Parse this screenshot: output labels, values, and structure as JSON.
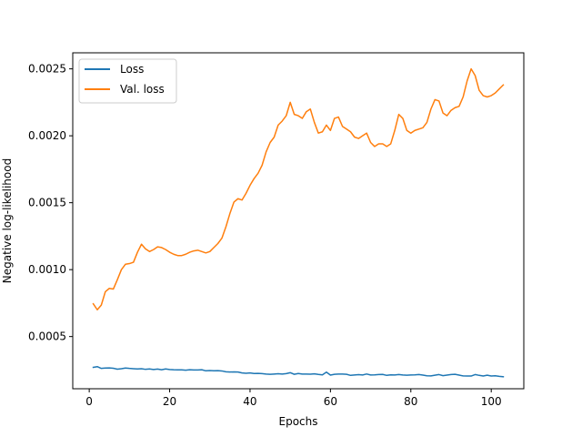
{
  "chart_data": {
    "type": "line",
    "title": "",
    "xlabel": "Epochs",
    "ylabel": "Negative log-likelihood",
    "xlim": [
      -4.1,
      108.1
    ],
    "ylim": [
      0.00011,
      0.00262
    ],
    "xticks": [
      {
        "value": 0,
        "label": "0"
      },
      {
        "value": 20,
        "label": "20"
      },
      {
        "value": 40,
        "label": "40"
      },
      {
        "value": 60,
        "label": "60"
      },
      {
        "value": 80,
        "label": "80"
      },
      {
        "value": 100,
        "label": "100"
      }
    ],
    "yticks": [
      {
        "value": 0.0005,
        "label": "0.0005"
      },
      {
        "value": 0.001,
        "label": "0.0010"
      },
      {
        "value": 0.0015,
        "label": "0.0015"
      },
      {
        "value": 0.002,
        "label": "0.0020"
      },
      {
        "value": 0.0025,
        "label": "0.0025"
      }
    ],
    "grid": false,
    "legend_position": "top-left",
    "x": [
      1,
      2,
      3,
      4,
      5,
      6,
      7,
      8,
      9,
      10,
      11,
      12,
      13,
      14,
      15,
      16,
      17,
      18,
      19,
      20,
      21,
      22,
      23,
      24,
      25,
      26,
      27,
      28,
      29,
      30,
      31,
      32,
      33,
      34,
      35,
      36,
      37,
      38,
      39,
      40,
      41,
      42,
      43,
      44,
      45,
      46,
      47,
      48,
      49,
      50,
      51,
      52,
      53,
      54,
      55,
      56,
      57,
      58,
      59,
      60,
      61,
      62,
      63,
      64,
      65,
      66,
      67,
      68,
      69,
      70,
      71,
      72,
      73,
      74,
      75,
      76,
      77,
      78,
      79,
      80,
      81,
      82,
      83,
      84,
      85,
      86,
      87,
      88,
      89,
      90,
      91,
      92,
      93,
      94,
      95,
      96,
      97,
      98,
      99,
      100,
      101,
      102,
      103
    ],
    "series": [
      {
        "name": "Loss",
        "color": "#1f77b4",
        "values": [
          0.00027,
          0.000275,
          0.000262,
          0.000265,
          0.000266,
          0.000263,
          0.000256,
          0.00026,
          0.000265,
          0.000262,
          0.00026,
          0.000258,
          0.00026,
          0.000255,
          0.000258,
          0.000254,
          0.000257,
          0.000252,
          0.000258,
          0.000254,
          0.000252,
          0.000251,
          0.000251,
          0.000249,
          0.000252,
          0.00025,
          0.00025,
          0.000252,
          0.000244,
          0.000246,
          0.000244,
          0.000245,
          0.000243,
          0.000237,
          0.000235,
          0.000236,
          0.000235,
          0.000228,
          0.000226,
          0.000228,
          0.000224,
          0.000225,
          0.000223,
          0.00022,
          0.000218,
          0.00022,
          0.000222,
          0.00022,
          0.000223,
          0.00023,
          0.000218,
          0.000224,
          0.00022,
          0.00022,
          0.000219,
          0.000221,
          0.000217,
          0.000214,
          0.000234,
          0.000212,
          0.000218,
          0.00022,
          0.00022,
          0.000218,
          0.00021,
          0.000213,
          0.000215,
          0.000213,
          0.00022,
          0.000213,
          0.000214,
          0.000216,
          0.000217,
          0.00021,
          0.000214,
          0.000213,
          0.000216,
          0.000213,
          0.000211,
          0.000213,
          0.000214,
          0.000216,
          0.000212,
          0.000207,
          0.000206,
          0.000211,
          0.000216,
          0.000208,
          0.000212,
          0.000216,
          0.000218,
          0.000212,
          0.000206,
          0.000205,
          0.000205,
          0.000216,
          0.00021,
          0.000205,
          0.000211,
          0.000205,
          0.000207,
          0.000203,
          0.0002
        ]
      },
      {
        "name": "Val. loss",
        "color": "#ff7f0e",
        "values": [
          0.000745,
          0.0007,
          0.000735,
          0.000835,
          0.00086,
          0.000855,
          0.000925,
          0.001,
          0.00104,
          0.001045,
          0.001055,
          0.00113,
          0.00119,
          0.001155,
          0.001135,
          0.00115,
          0.00117,
          0.001165,
          0.00115,
          0.00113,
          0.001115,
          0.001105,
          0.001105,
          0.001115,
          0.00113,
          0.00114,
          0.001145,
          0.001135,
          0.001125,
          0.001135,
          0.001165,
          0.001195,
          0.001235,
          0.00132,
          0.00142,
          0.001505,
          0.00153,
          0.00152,
          0.00157,
          0.00163,
          0.00168,
          0.00172,
          0.00178,
          0.00188,
          0.00195,
          0.00199,
          0.00208,
          0.00211,
          0.00215,
          0.00225,
          0.00216,
          0.00215,
          0.00213,
          0.00218,
          0.0022,
          0.0021,
          0.00202,
          0.00203,
          0.00208,
          0.00204,
          0.00213,
          0.00214,
          0.00207,
          0.00205,
          0.00203,
          0.00199,
          0.00198,
          0.002,
          0.00202,
          0.00195,
          0.00192,
          0.00194,
          0.00194,
          0.00192,
          0.00194,
          0.00204,
          0.00216,
          0.00213,
          0.00204,
          0.00202,
          0.00204,
          0.00205,
          0.00206,
          0.0021,
          0.0022,
          0.00227,
          0.00226,
          0.00217,
          0.00215,
          0.00219,
          0.00221,
          0.00222,
          0.00229,
          0.00241,
          0.0025,
          0.00245,
          0.00234,
          0.0023,
          0.00229,
          0.0023,
          0.00232,
          0.00235,
          0.00238
        ]
      }
    ]
  }
}
